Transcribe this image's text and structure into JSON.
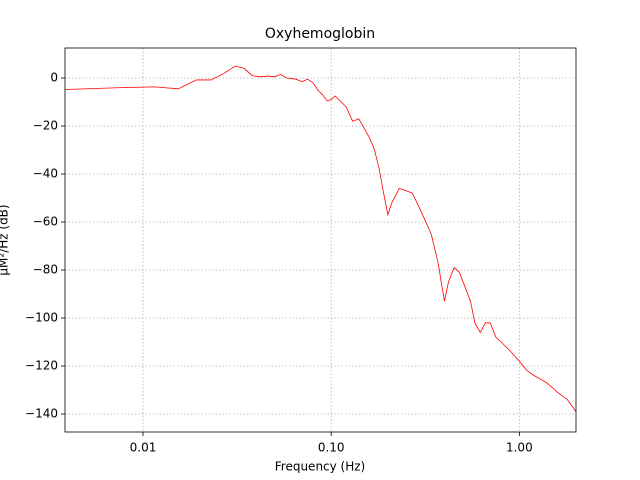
{
  "chart_data": {
    "type": "line",
    "title": "Oxyhemoglobin",
    "xlabel": "Frequency (Hz)",
    "ylabel": "μM²/Hz (dB)",
    "xscale": "log",
    "grid": true,
    "x": [
      0.00385,
      0.0077,
      0.0115,
      0.0154,
      0.0192,
      0.023,
      0.027,
      0.031,
      0.0345,
      0.038,
      0.042,
      0.046,
      0.05,
      0.054,
      0.058,
      0.065,
      0.07,
      0.075,
      0.08,
      0.085,
      0.09,
      0.095,
      0.1,
      0.105,
      0.11,
      0.12,
      0.13,
      0.14,
      0.15,
      0.16,
      0.17,
      0.18,
      0.19,
      0.2,
      0.21,
      0.22,
      0.23,
      0.25,
      0.27,
      0.29,
      0.31,
      0.34,
      0.37,
      0.39,
      0.4,
      0.42,
      0.45,
      0.48,
      0.52,
      0.55,
      0.58,
      0.62,
      0.66,
      0.7,
      0.75,
      0.8,
      0.9,
      1.0,
      1.1,
      1.2,
      1.4,
      1.6,
      1.8,
      2.0
    ],
    "series": [
      {
        "name": "Oxyhemoglobin",
        "color": "#ff0000",
        "values": [
          -4.8,
          -4,
          -3.7,
          -4.5,
          -0.8,
          -0.8,
          2,
          5,
          4,
          1,
          0.5,
          0.8,
          0.5,
          1.5,
          0,
          -0.5,
          -1.5,
          -0.5,
          -2,
          -5,
          -7,
          -9.5,
          -9,
          -7.5,
          -9,
          -12,
          -18,
          -17,
          -21,
          -25,
          -30,
          -38,
          -48,
          -57,
          -52,
          -49,
          -46,
          -47,
          -48,
          -53,
          -58,
          -65,
          -77,
          -88,
          -93,
          -85,
          -79,
          -81,
          -88,
          -93,
          -102,
          -106,
          -102,
          -102,
          -108,
          -110,
          -114,
          -118,
          -122,
          -124,
          -127,
          -131,
          -134,
          -139
        ]
      }
    ],
    "xlim": [
      0.00385,
      2.0
    ],
    "ylim": [
      -147.5,
      12.5
    ],
    "xticks": [
      {
        "value": 0.01,
        "label": "0.01"
      },
      {
        "value": 0.1,
        "label": "0.10"
      },
      {
        "value": 1.0,
        "label": "1.00"
      }
    ],
    "yticks": [
      0,
      {
        "value": -20,
        "label": "−20"
      },
      {
        "value": -40,
        "label": "−40"
      },
      {
        "value": -60,
        "label": "−60"
      },
      {
        "value": -80,
        "label": "−80"
      },
      {
        "value": -100,
        "label": "−100"
      },
      {
        "value": -120,
        "label": "−120"
      },
      {
        "value": -140,
        "label": "−140"
      }
    ]
  }
}
